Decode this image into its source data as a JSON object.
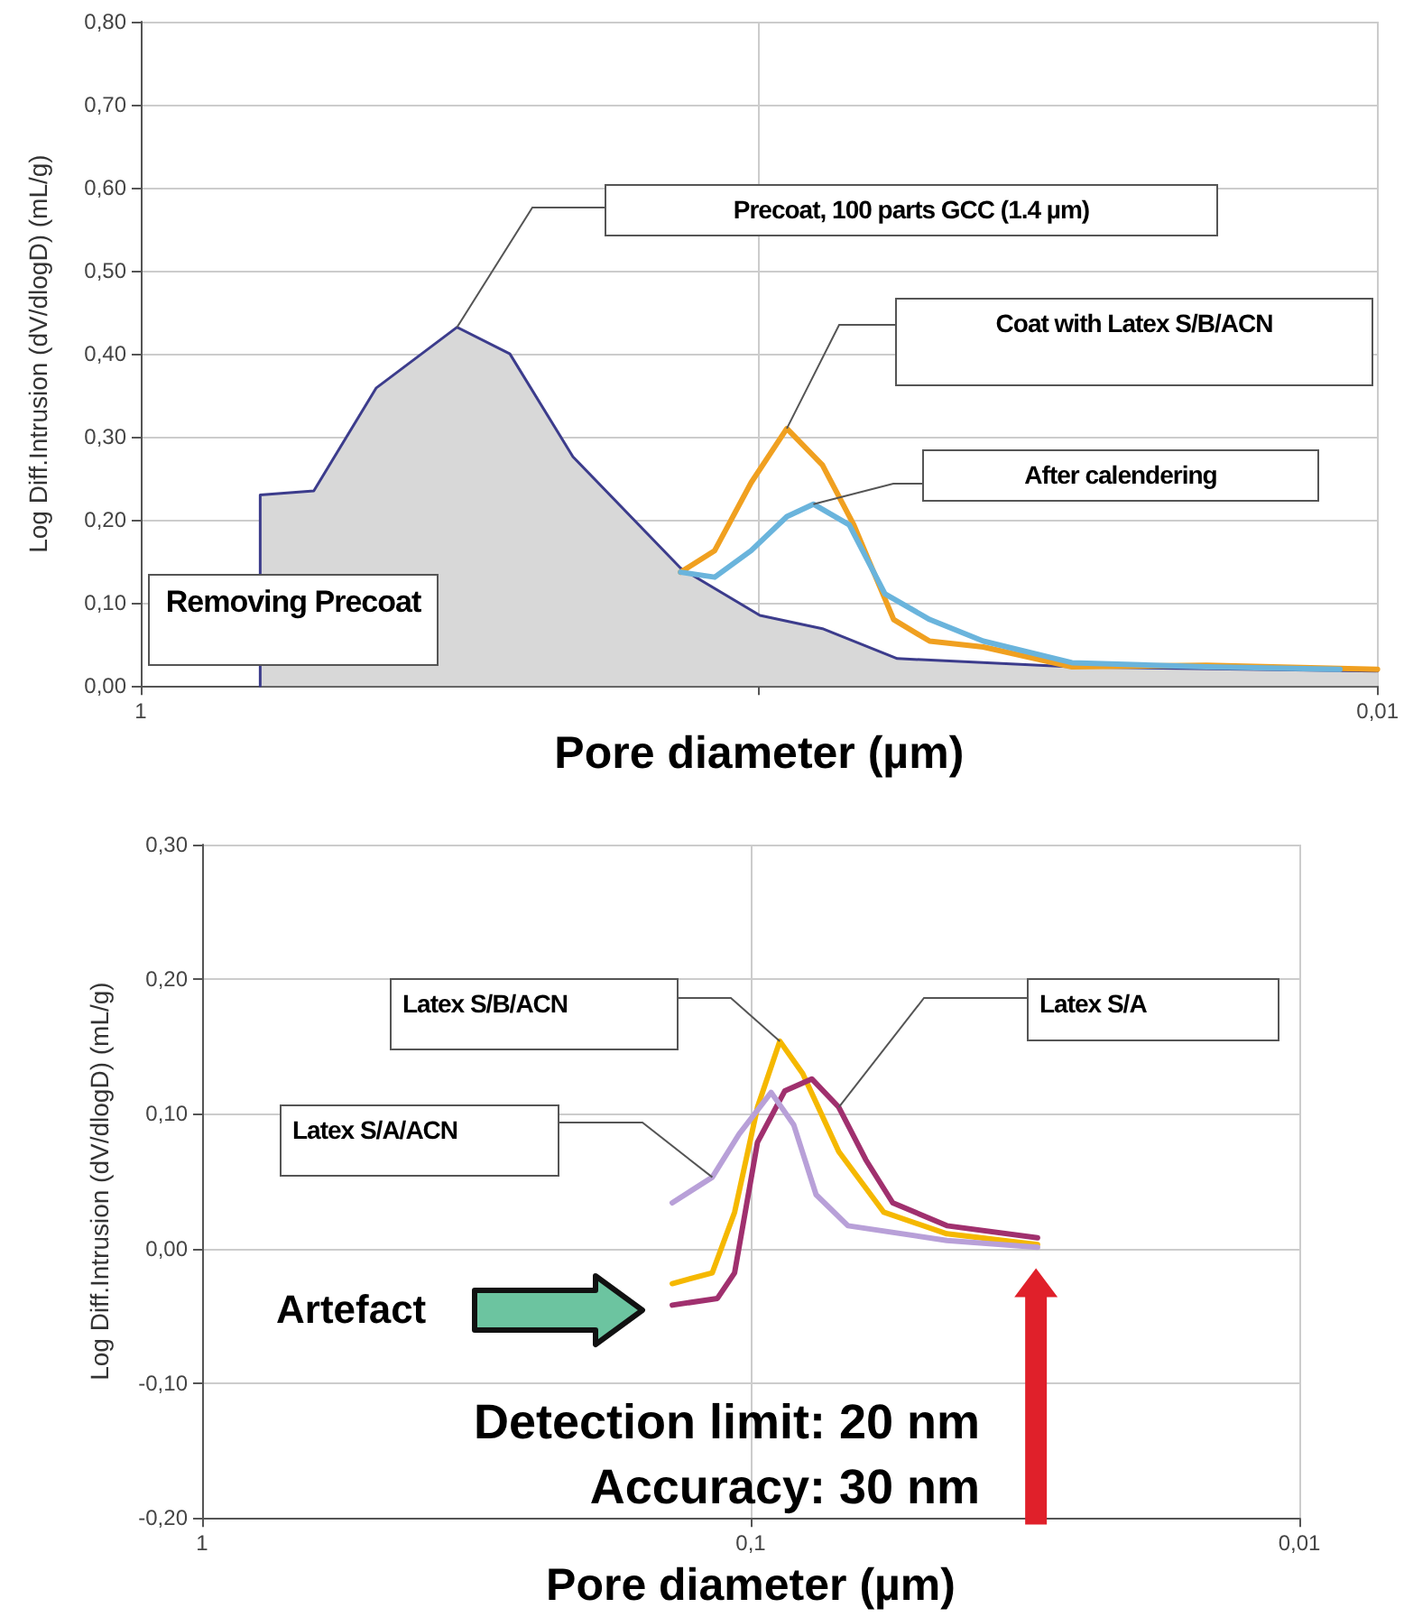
{
  "chart_data": [
    {
      "type": "line",
      "xlabel": "Pore diameter (µm)",
      "ylabel": "Log Diff.Intrusion (dV/dlogD) (mL/g)",
      "log": "x",
      "xlim": [
        1,
        0.01
      ],
      "xticks": [
        {
          "value": 1,
          "label": "1"
        },
        {
          "value": 0.1,
          "label": null
        },
        {
          "value": 0.01,
          "label": "0,01"
        }
      ],
      "ylim": [
        0,
        0.8
      ],
      "yticks": [
        {
          "value": 0,
          "label": "0,00"
        },
        {
          "value": 0.1,
          "label": "0,10"
        },
        {
          "value": 0.2,
          "label": "0,20"
        },
        {
          "value": 0.3,
          "label": "0,30"
        },
        {
          "value": 0.4,
          "label": "0,40"
        },
        {
          "value": 0.5,
          "label": "0,50"
        },
        {
          "value": 0.6,
          "label": "0,60"
        },
        {
          "value": 0.7,
          "label": "0,70"
        },
        {
          "value": 0.8,
          "label": "0,80"
        }
      ],
      "grid": true,
      "marker": "none",
      "series": [
        {
          "type": "area",
          "color": "#3c3c8c",
          "x": [
            0.641,
            0.641,
            0.525,
            0.416,
            0.308,
            0.253,
            0.2,
            0.134,
            0.0997,
            0.079,
            0.0598,
            0.0312,
            0.01
          ],
          "values": [
            0,
            0.23,
            0.235,
            0.359,
            0.432,
            0.4,
            0.276,
            0.142,
            0.085,
            0.069,
            0.033,
            0.023,
            0.018
          ]
        },
        {
          "type": "line",
          "color": "#f0a020",
          "x": [
            0.134,
            0.118,
            0.103,
            0.0902,
            0.079,
            0.0703,
            0.0606,
            0.053,
            0.0434,
            0.0312,
            0.0189,
            0.01
          ],
          "values": [
            0.137,
            0.163,
            0.245,
            0.31,
            0.266,
            0.194,
            0.08,
            0.054,
            0.047,
            0.023,
            0.025,
            0.02
          ]
        },
        {
          "type": "line",
          "color": "#6ab4dc",
          "x": [
            0.134,
            0.118,
            0.103,
            0.0902,
            0.0817,
            0.0715,
            0.0626,
            0.053,
            0.0434,
            0.0312,
            0.0189,
            0.0115
          ],
          "values": [
            0.137,
            0.131,
            0.163,
            0.204,
            0.219,
            0.194,
            0.111,
            0.08,
            0.054,
            0.028,
            0.023,
            0.02
          ]
        }
      ],
      "annotations": [
        {
          "text": "Precoat, 100 parts GCC (1.4 µm)",
          "x": 0.308,
          "y": 0.432
        },
        {
          "text": "Coat with Latex  S/B/ACN",
          "x": 0.0902,
          "y": 0.31
        },
        {
          "text": "After calendering",
          "x": 0.0817,
          "y": 0.219
        },
        "Removing Precoat"
      ]
    },
    {
      "type": "line",
      "xlabel": "Pore diameter (µm)",
      "ylabel": "Log Diff.Intrusion (dV/dlogD) (mL/g)",
      "log": "x",
      "xlim": [
        1,
        0.01
      ],
      "xticks": [
        {
          "value": 1,
          "label": "1"
        },
        {
          "value": 0.1,
          "label": "0,1"
        },
        {
          "value": 0.01,
          "label": "0,01"
        }
      ],
      "ylim": [
        -0.2,
        0.3
      ],
      "yticks": [
        {
          "value": -0.2,
          "label": "-0,20"
        },
        {
          "value": -0.1,
          "label": "-0,10"
        },
        {
          "value": 0,
          "label": "0,00"
        },
        {
          "value": 0.1,
          "label": "0,10"
        },
        {
          "value": 0.2,
          "label": "0,20"
        },
        {
          "value": 0.3,
          "label": "0,30"
        }
      ],
      "grid": true,
      "marker": "none",
      "series": [
        {
          "type": "line",
          "color": "#f5b800",
          "x": [
            0.139,
            0.1175,
            0.107,
            0.0972,
            0.0885,
            0.0804,
            0.0691,
            0.0572,
            0.0439,
            0.03
          ],
          "values": [
            -0.026,
            -0.018,
            0.027,
            0.105,
            0.154,
            0.13,
            0.072,
            0.027,
            0.011,
            0.003
          ]
        },
        {
          "type": "line",
          "color": "#a0306e",
          "x": [
            0.139,
            0.115,
            0.107,
            0.0972,
            0.0867,
            0.0774,
            0.0691,
            0.0617,
            0.0551,
            0.0439,
            0.03
          ],
          "values": [
            -0.042,
            -0.037,
            -0.018,
            0.079,
            0.117,
            0.126,
            0.105,
            0.066,
            0.034,
            0.017,
            0.008
          ]
        },
        {
          "type": "line",
          "color": "#b8a0d8",
          "x": [
            0.139,
            0.1175,
            0.105,
            0.0918,
            0.0835,
            0.076,
            0.0665,
            0.0439,
            0.03
          ],
          "values": [
            0.034,
            0.053,
            0.085,
            0.116,
            0.092,
            0.04,
            0.017,
            0.006,
            0.001
          ]
        }
      ],
      "annotations": [
        {
          "text": "Latex S/B/ACN",
          "x": 0.0885,
          "y": 0.154
        },
        {
          "text": "Latex S/A",
          "x": 0.0691,
          "y": 0.105
        },
        {
          "text": "Latex S/A/ACN",
          "x": 0.1175,
          "y": 0.053
        },
        "Artefact",
        "Detection limit: 20 nm",
        "Accuracy: 30 nm"
      ]
    }
  ]
}
